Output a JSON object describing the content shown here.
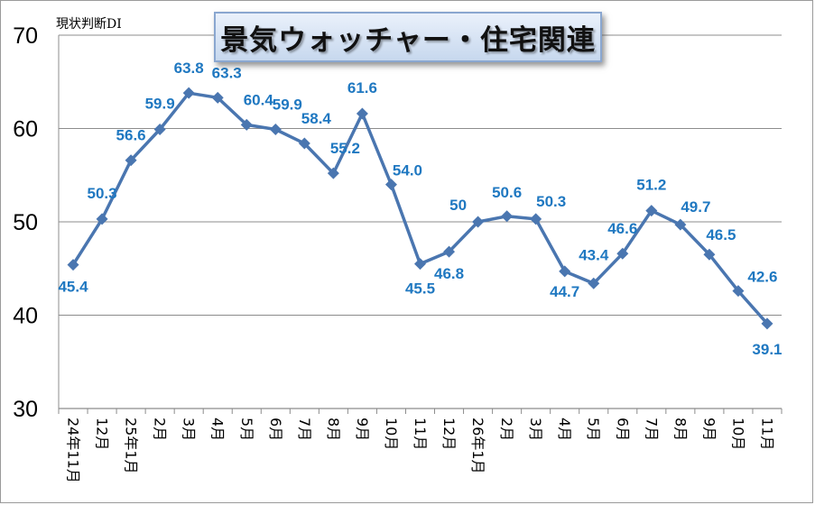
{
  "chart_data": {
    "type": "line",
    "title": "景気ウォッチャー・住宅関連",
    "ylabel": "現状判断DI",
    "ylim": [
      30,
      70
    ],
    "yticks": [
      30,
      40,
      50,
      60,
      70
    ],
    "grid": true,
    "categories": [
      "24年11月",
      "12月",
      "25年1月",
      "2月",
      "3月",
      "4月",
      "5月",
      "6月",
      "7月",
      "8月",
      "9月",
      "10月",
      "11月",
      "12月",
      "26年1月",
      "2月",
      "3月",
      "4月",
      "5月",
      "6月",
      "7月",
      "8月",
      "9月",
      "10月",
      "11月"
    ],
    "series": [
      {
        "values": [
          45.4,
          50.3,
          56.6,
          59.9,
          63.8,
          63.3,
          60.4,
          59.9,
          58.4,
          55.2,
          61.6,
          54.0,
          45.5,
          46.8,
          50,
          50.6,
          50.3,
          44.7,
          43.4,
          46.6,
          51.2,
          49.7,
          46.5,
          42.6,
          39.1
        ],
        "labels": [
          "45.4",
          "50.3",
          "56.6",
          "59.9",
          "63.8",
          "63.3",
          "60.4",
          "59.9",
          "58.4",
          "55.2",
          "61.6",
          "54.0",
          "45.5",
          "46.8",
          "50",
          "50.6",
          "50.3",
          "44.7",
          "43.4",
          "46.6",
          "51.2",
          "49.7",
          "46.5",
          "42.6",
          "39.1"
        ]
      }
    ],
    "colors": {
      "line": "#4a76b0",
      "label": "#1f78c1"
    }
  }
}
